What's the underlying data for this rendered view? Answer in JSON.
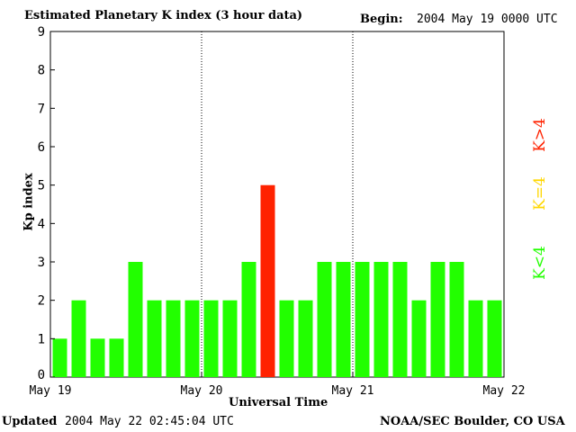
{
  "header": {
    "title": "Estimated Planetary K index (3 hour data)",
    "begin_label": "Begin:",
    "begin_value": "2004 May 19 0000 UTC"
  },
  "footer": {
    "updated_label": "Updated",
    "updated_value": "2004 May 22 02:45:04 UTC",
    "source": "NOAA/SEC Boulder, CO USA"
  },
  "legend": {
    "high": "K>4",
    "equal": "K=4",
    "low": "K<4",
    "colors": {
      "high": "#ff2200",
      "equal": "#ffd700",
      "low": "#22ff00"
    }
  },
  "chart_data": {
    "type": "bar",
    "title": "Estimated Planetary K index (3 hour data)",
    "xlabel": "Universal Time",
    "ylabel": "Kp index",
    "ylim": [
      0,
      9
    ],
    "yticks": [
      "0",
      "1",
      "2",
      "3",
      "4",
      "5",
      "6",
      "7",
      "8",
      "9"
    ],
    "xticks": [
      "May 19",
      "May 20",
      "May 21",
      "May 22"
    ],
    "grid": false,
    "day_separators": "dotted",
    "values": [
      1,
      2,
      1,
      1,
      3,
      2,
      2,
      2,
      2,
      2,
      3,
      5,
      2,
      2,
      3,
      3,
      3,
      3,
      3,
      2,
      3,
      3,
      2,
      2
    ]
  }
}
